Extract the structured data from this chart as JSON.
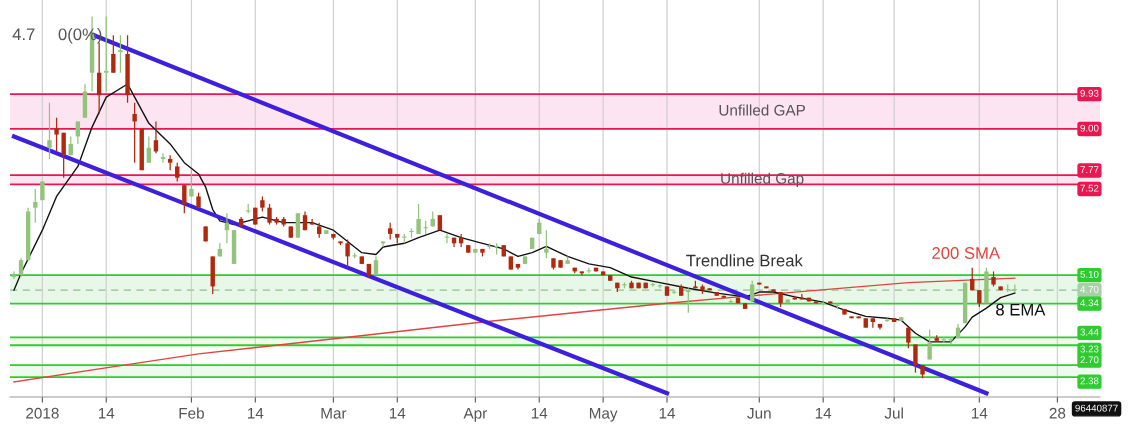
{
  "chart_data": {
    "type": "candlestick",
    "categories": [
      null,
      null,
      null,
      null,
      "2018",
      null,
      null,
      null,
      null,
      null,
      null,
      null,
      null,
      "14",
      null,
      null,
      null,
      null,
      null,
      null,
      null,
      null,
      null,
      null,
      null,
      "Feb",
      null,
      null,
      null,
      null,
      null,
      null,
      null,
      null,
      "14",
      null,
      null,
      null,
      null,
      null,
      null,
      null,
      null,
      null,
      null,
      "Mar",
      null,
      null,
      null,
      null,
      null,
      null,
      null,
      null,
      "14",
      null,
      null,
      null,
      null,
      null,
      null,
      null,
      null,
      null,
      null,
      "Apr",
      null,
      null,
      null,
      null,
      null,
      null,
      null,
      null,
      "14",
      null,
      null,
      null,
      null,
      null,
      null,
      null,
      null,
      "May",
      null,
      null,
      null,
      null,
      null,
      null,
      null,
      null,
      "14",
      null,
      null,
      null,
      null,
      null,
      null,
      null,
      null,
      null,
      null,
      null,
      null,
      "Jun",
      null,
      null,
      null,
      null,
      null,
      null,
      null,
      null,
      "14",
      null,
      null,
      null,
      null,
      null,
      null,
      null,
      null,
      null,
      "Jul",
      null,
      null,
      null,
      null,
      null,
      null,
      null,
      null,
      null,
      null,
      null,
      "14",
      null,
      null,
      null,
      null,
      null,
      null,
      null,
      null,
      null,
      null,
      "28"
    ],
    "ohlc": [
      [
        5.05,
        5.2,
        5.0,
        5.1
      ],
      [
        5.1,
        5.55,
        5.05,
        5.5
      ],
      [
        5.5,
        6.9,
        5.5,
        6.8
      ],
      [
        6.9,
        7.4,
        6.5,
        7.05
      ],
      [
        7.1,
        7.6,
        7.1,
        7.6
      ],
      [
        8.5,
        9.7,
        8.2,
        8.7
      ],
      [
        9.0,
        9.3,
        8.4,
        8.85
      ],
      [
        8.9,
        8.9,
        7.7,
        8.3
      ],
      [
        8.3,
        8.8,
        8.3,
        8.6
      ],
      [
        8.8,
        9.2,
        8.6,
        9.2
      ],
      [
        9.3,
        10.2,
        9.3,
        10.0
      ],
      [
        10.5,
        12.0,
        10.0,
        11.55
      ],
      [
        10.5,
        11.3,
        9.4,
        9.9
      ],
      [
        10.5,
        12.0,
        10.0,
        10.55
      ],
      [
        11.0,
        11.5,
        10.5,
        10.5
      ],
      [
        11.05,
        11.5,
        10.5,
        11.1
      ],
      [
        11.0,
        11.5,
        9.7,
        9.9
      ],
      [
        9.4,
        9.7,
        8.1,
        9.2
      ],
      [
        9.0,
        9.0,
        7.9,
        7.9
      ],
      [
        8.1,
        8.8,
        8.1,
        8.5
      ],
      [
        8.7,
        9.2,
        8.35,
        8.4
      ],
      [
        8.2,
        8.35,
        8.1,
        8.25
      ],
      [
        8.2,
        8.3,
        7.9,
        8.1
      ],
      [
        8.0,
        8.1,
        7.6,
        7.7
      ],
      [
        7.5,
        7.5,
        6.75,
        7.0
      ],
      [
        7.2,
        7.9,
        7.2,
        7.4
      ],
      [
        7.2,
        7.3,
        6.9,
        6.9
      ],
      [
        6.4,
        6.4,
        6.0,
        6.0
      ],
      [
        5.6,
        5.6,
        4.6,
        4.8
      ],
      [
        5.6,
        5.95,
        5.6,
        5.8
      ],
      [
        6.3,
        6.75,
        5.95,
        6.5
      ],
      [
        5.4,
        6.3,
        5.4,
        6.3
      ],
      [
        6.6,
        6.65,
        6.4,
        6.4
      ],
      [
        6.8,
        7.0,
        6.75,
        6.82
      ],
      [
        6.9,
        6.9,
        6.45,
        6.45
      ],
      [
        7.1,
        7.2,
        6.8,
        6.9
      ],
      [
        6.9,
        7.0,
        6.45,
        6.5
      ],
      [
        6.6,
        6.65,
        6.45,
        6.5
      ],
      [
        6.6,
        6.65,
        6.4,
        6.45
      ],
      [
        6.4,
        6.4,
        6.1,
        6.1
      ],
      [
        6.1,
        6.75,
        6.1,
        6.75
      ],
      [
        6.7,
        6.8,
        6.3,
        6.3
      ],
      [
        6.5,
        6.6,
        6.45,
        6.45
      ],
      [
        6.4,
        6.5,
        6.1,
        6.2
      ],
      [
        6.2,
        6.3,
        6.2,
        6.3
      ],
      [
        6.2,
        6.2,
        6.05,
        6.1
      ],
      [
        6.0,
        6.0,
        5.9,
        5.95
      ],
      [
        5.95,
        6.05,
        5.3,
        5.6
      ],
      [
        5.6,
        5.7,
        5.55,
        5.62
      ],
      [
        5.6,
        5.6,
        5.4,
        5.4
      ],
      [
        5.4,
        5.4,
        5.05,
        5.1
      ],
      [
        5.1,
        5.6,
        5.1,
        5.5
      ],
      [
        5.95,
        6.0,
        5.85,
        6.0
      ],
      [
        6.35,
        6.5,
        6.05,
        6.2
      ],
      [
        6.2,
        6.2,
        5.95,
        6.1
      ],
      [
        6.1,
        6.2,
        5.95,
        6.12
      ],
      [
        6.25,
        6.35,
        6.1,
        6.27
      ],
      [
        6.2,
        7.0,
        6.2,
        6.6
      ],
      [
        6.35,
        6.55,
        6.2,
        6.37
      ],
      [
        6.4,
        6.8,
        6.4,
        6.6
      ],
      [
        6.7,
        6.7,
        6.3,
        6.3
      ],
      [
        6.1,
        6.2,
        5.95,
        6.12
      ],
      [
        6.1,
        6.1,
        5.85,
        5.95
      ],
      [
        6.1,
        6.2,
        5.85,
        5.95
      ],
      [
        5.9,
        5.9,
        5.7,
        5.7
      ],
      [
        5.7,
        5.8,
        5.7,
        5.8
      ],
      [
        5.8,
        5.8,
        5.6,
        5.7
      ],
      [
        5.85,
        5.95,
        5.8,
        5.87
      ],
      [
        5.85,
        5.95,
        5.65,
        5.87
      ],
      [
        5.9,
        5.9,
        5.6,
        5.6
      ],
      [
        5.6,
        5.6,
        5.25,
        5.25
      ],
      [
        5.4,
        5.4,
        5.25,
        5.3
      ],
      [
        5.4,
        5.6,
        5.4,
        5.6
      ],
      [
        5.8,
        6.1,
        5.8,
        6.1
      ],
      [
        6.2,
        6.6,
        6.2,
        6.5
      ],
      [
        5.7,
        6.3,
        5.55,
        5.8
      ],
      [
        5.55,
        5.55,
        5.25,
        5.3
      ],
      [
        5.5,
        5.5,
        5.3,
        5.3
      ],
      [
        5.4,
        5.6,
        5.4,
        5.5
      ],
      [
        5.3,
        5.3,
        5.15,
        5.2
      ],
      [
        5.2,
        5.2,
        5.1,
        5.15
      ],
      [
        5.2,
        5.3,
        5.15,
        5.22
      ],
      [
        5.3,
        5.3,
        5.2,
        5.2
      ],
      [
        5.2,
        5.2,
        5.1,
        5.1
      ],
      [
        5.1,
        5.1,
        4.95,
        4.95
      ],
      [
        4.9,
        4.9,
        4.65,
        4.75
      ],
      [
        4.83,
        4.9,
        4.75,
        4.85
      ],
      [
        4.9,
        4.95,
        4.75,
        4.75
      ],
      [
        4.9,
        4.9,
        4.75,
        4.75
      ],
      [
        4.9,
        4.9,
        4.75,
        4.75
      ],
      [
        4.83,
        4.9,
        4.8,
        4.85
      ],
      [
        4.8,
        4.85,
        4.75,
        4.82
      ],
      [
        4.8,
        4.8,
        4.55,
        4.55
      ],
      [
        4.63,
        4.7,
        4.6,
        4.65
      ],
      [
        4.8,
        4.85,
        4.55,
        4.55
      ],
      [
        4.65,
        4.75,
        4.1,
        4.7
      ],
      [
        4.8,
        4.95,
        4.75,
        4.75
      ],
      [
        4.8,
        4.85,
        4.6,
        4.7
      ],
      [
        4.75,
        4.75,
        4.7,
        4.7
      ],
      [
        4.65,
        4.65,
        4.55,
        4.55
      ],
      [
        4.55,
        4.55,
        4.5,
        4.5
      ],
      [
        4.38,
        4.45,
        4.35,
        4.4
      ],
      [
        4.5,
        4.5,
        4.35,
        4.35
      ],
      [
        4.35,
        4.35,
        4.2,
        4.2
      ],
      [
        4.4,
        4.95,
        4.4,
        4.85
      ],
      [
        4.9,
        4.9,
        4.85,
        4.85
      ],
      [
        4.8,
        4.8,
        4.75,
        4.75
      ],
      [
        4.72,
        4.72,
        4.65,
        4.65
      ],
      [
        4.65,
        4.65,
        4.25,
        4.35
      ],
      [
        4.35,
        4.45,
        4.35,
        4.45
      ],
      [
        4.5,
        4.55,
        4.45,
        4.45
      ],
      [
        4.5,
        4.6,
        4.45,
        4.45
      ],
      [
        4.5,
        4.5,
        4.4,
        4.4
      ],
      [
        4.4,
        4.4,
        4.35,
        4.35
      ],
      [
        4.33,
        4.4,
        4.3,
        4.35
      ],
      [
        4.4,
        4.4,
        4.35,
        4.35
      ],
      [
        4.28,
        4.35,
        4.2,
        4.3
      ],
      [
        4.2,
        4.2,
        4.05,
        4.05
      ],
      [
        4.0,
        4.0,
        3.95,
        3.95
      ],
      [
        4.0,
        4.0,
        3.95,
        3.95
      ],
      [
        3.95,
        3.95,
        3.7,
        3.7
      ],
      [
        3.95,
        3.95,
        3.7,
        3.85
      ],
      [
        3.8,
        3.8,
        3.65,
        3.7
      ],
      [
        3.88,
        3.95,
        3.85,
        3.9
      ],
      [
        3.95,
        3.95,
        3.85,
        3.85
      ],
      [
        3.88,
        3.98,
        3.88,
        3.98
      ],
      [
        3.7,
        3.7,
        3.15,
        3.3
      ],
      [
        3.25,
        3.25,
        2.5,
        2.7
      ],
      [
        2.7,
        2.7,
        2.35,
        2.45
      ],
      [
        2.85,
        3.65,
        2.85,
        3.3
      ],
      [
        3.42,
        3.5,
        3.35,
        3.35
      ],
      [
        3.36,
        3.45,
        3.3,
        3.38
      ],
      [
        3.36,
        3.45,
        3.25,
        3.38
      ],
      [
        3.42,
        3.8,
        3.42,
        3.7
      ],
      [
        3.82,
        4.9,
        3.82,
        4.9
      ],
      [
        5.0,
        5.3,
        4.7,
        4.7
      ],
      [
        4.7,
        4.7,
        4.25,
        4.35
      ],
      [
        4.35,
        5.3,
        4.35,
        5.2
      ],
      [
        5.05,
        5.2,
        4.8,
        4.85
      ],
      [
        4.8,
        4.8,
        4.7,
        4.7
      ],
      [
        4.7,
        4.85,
        4.65,
        4.72
      ],
      [
        4.7,
        4.85,
        4.65,
        4.72
      ],
      null,
      null,
      null,
      null,
      null,
      null
    ],
    "colors": [
      "#93c47d",
      "#93c47d",
      "#93c47d",
      "#93c47d",
      "#93c47d",
      "#93c47d",
      "#b0290f",
      "#b0290f",
      "#93c47d",
      "#93c47d",
      "#93c47d",
      "#93c47d",
      "#b0290f",
      "#93c47d",
      "#b0290f",
      "#93c47d",
      "#b0290f",
      "#b0290f",
      "#b0290f",
      "#93c47d",
      "#b0290f",
      "#93c47d",
      "#b0290f",
      "#b0290f",
      "#b0290f",
      "#93c47d",
      "#b0290f",
      "#b0290f",
      "#b0290f",
      "#93c47d",
      "#93c47d",
      "#93c47d",
      "#b0290f",
      "#93c47d",
      "#b0290f",
      "#b0290f",
      "#b0290f",
      "#b0290f",
      "#b0290f",
      "#b0290f",
      "#93c47d",
      "#b0290f",
      "#b0290f",
      "#b0290f",
      "#93c47d",
      "#b0290f",
      "#b0290f",
      "#b0290f",
      "#93c47d",
      "#b0290f",
      "#b0290f",
      "#93c47d",
      "#93c47d",
      "#b0290f",
      "#b0290f",
      "#93c47d",
      "#93c47d",
      "#93c47d",
      "#93c47d",
      "#93c47d",
      "#b0290f",
      "#93c47d",
      "#b0290f",
      "#b0290f",
      "#b0290f",
      "#93c47d",
      "#b0290f",
      "#93c47d",
      "#93c47d",
      "#b0290f",
      "#b0290f",
      "#b0290f",
      "#93c47d",
      "#93c47d",
      "#93c47d",
      "#93c47d",
      "#b0290f",
      "#b0290f",
      "#93c47d",
      "#b0290f",
      "#b0290f",
      "#93c47d",
      "#b0290f",
      "#b0290f",
      "#b0290f",
      "#b0290f",
      "#93c47d",
      "#b0290f",
      "#b0290f",
      "#b0290f",
      "#93c47d",
      "#93c47d",
      "#b0290f",
      "#93c47d",
      "#b0290f",
      "#93c47d",
      "#b0290f",
      "#b0290f",
      "#b0290f",
      "#b0290f",
      "#b0290f",
      "#93c47d",
      "#b0290f",
      "#b0290f",
      "#93c47d",
      "#b0290f",
      "#b0290f",
      "#b0290f",
      "#b0290f",
      "#93c47d",
      "#b0290f",
      "#b0290f",
      "#b0290f",
      "#b0290f",
      "#93c47d",
      "#b0290f",
      "#93c47d",
      "#b0290f",
      "#b0290f",
      "#b0290f",
      "#b0290f",
      "#b0290f",
      "#b0290f",
      "#93c47d",
      "#b0290f",
      "#93c47d",
      "#b0290f",
      "#b0290f",
      "#b0290f",
      "#93c47d",
      "#b0290f",
      "#93c47d",
      "#93c47d",
      "#93c47d",
      "#93c47d",
      "#b0290f",
      "#b0290f",
      "#93c47d",
      "#b0290f",
      "#b0290f",
      "#93c47d",
      "#93c47d",
      null,
      null,
      null,
      null,
      null,
      null
    ],
    "series": [
      {
        "name": "200 SMA",
        "type": "line",
        "color": "#e0443a",
        "values": [
          2.25,
          null,
          null,
          null,
          null,
          null,
          null,
          null,
          null,
          null,
          null,
          null,
          2.6,
          null,
          null,
          null,
          null,
          null,
          null,
          null,
          null,
          null,
          null,
          null,
          null,
          null,
          3.0,
          null,
          null,
          null,
          null,
          null,
          null,
          null,
          null,
          null,
          null,
          null,
          null,
          null,
          null,
          null,
          null,
          null,
          null,
          null,
          null,
          null,
          null,
          null,
          null,
          null,
          3.55,
          null,
          null,
          null,
          null,
          null,
          null,
          null,
          null,
          null,
          null,
          null,
          null,
          null,
          3.85,
          null,
          null,
          null,
          null,
          null,
          null,
          null,
          null,
          null,
          null,
          null,
          null,
          null,
          null,
          null,
          null,
          null,
          null,
          null,
          null,
          null,
          null,
          null,
          null,
          null,
          4.35,
          null,
          null,
          null,
          null,
          null,
          null,
          null,
          null,
          null,
          4.52,
          null,
          null,
          null,
          null,
          null,
          null,
          null,
          null,
          null,
          null,
          null,
          null,
          null,
          null,
          null,
          null,
          null,
          null,
          null,
          null,
          null,
          null,
          null,
          4.9,
          null,
          null,
          null,
          null,
          null,
          null,
          null,
          null,
          null,
          null,
          null,
          null,
          null,
          null,
          5.02,
          null,
          null,
          null,
          null,
          null,
          null
        ]
      },
      {
        "name": "8 EMA",
        "type": "line",
        "color": "#111111",
        "values": [
          4.7,
          5.15,
          null,
          null,
          6.3,
          null,
          7.2,
          null,
          null,
          8.0,
          null,
          9.05,
          null,
          9.85,
          null,
          null,
          10.2,
          9.85,
          null,
          9.15,
          null,
          null,
          8.6,
          null,
          8.1,
          null,
          7.8,
          7.45,
          6.85,
          6.55,
          null,
          6.45,
          null,
          6.55,
          null,
          6.65,
          null,
          null,
          6.5,
          null,
          null,
          null,
          6.5,
          null,
          null,
          6.3,
          null,
          6.0,
          null,
          5.7,
          null,
          5.65,
          5.85,
          null,
          null,
          5.95,
          null,
          6.1,
          null,
          null,
          6.3,
          null,
          null,
          6.1,
          null,
          null,
          5.95,
          null,
          null,
          5.8,
          null,
          5.6,
          null,
          5.7,
          null,
          5.87,
          null,
          null,
          5.6,
          null,
          null,
          5.4,
          null,
          null,
          5.3,
          null,
          null,
          5.05,
          null,
          null,
          null,
          4.9,
          null,
          null,
          null,
          4.75,
          null,
          null,
          null,
          4.62,
          null,
          null,
          null,
          4.52,
          null,
          4.65,
          null,
          4.65,
          null,
          null,
          4.52,
          null,
          null,
          null,
          4.38,
          null,
          null,
          4.17,
          null,
          null,
          4.0,
          null,
          null,
          3.95,
          null,
          3.9,
          null,
          3.55,
          null,
          3.32,
          null,
          null,
          3.32,
          null,
          3.72,
          3.98,
          null,
          4.22,
          null,
          4.5,
          null,
          4.62,
          null,
          null,
          null,
          null,
          null,
          null
        ]
      },
      {
        "type": "line",
        "color": "#3d1fdc",
        "values": [
          null,
          null,
          null,
          null,
          null,
          null,
          null,
          null,
          null,
          null,
          null,
          11.52,
          null,
          null,
          null,
          null,
          null,
          null,
          null,
          null,
          null,
          null,
          null,
          null,
          null,
          null,
          null,
          null,
          null,
          null,
          null,
          null,
          null,
          null,
          null,
          null,
          null,
          null,
          null,
          null,
          null,
          null,
          null,
          null,
          null,
          null,
          null,
          null,
          null,
          null,
          null,
          null,
          null,
          null,
          null,
          null,
          null,
          null,
          null,
          null,
          null,
          null,
          null,
          null,
          null,
          null,
          null,
          null,
          null,
          null,
          null,
          null,
          null,
          null,
          null,
          null,
          null,
          null,
          null,
          null,
          null,
          null,
          null,
          null,
          null,
          null,
          null,
          null,
          null,
          null,
          null,
          null,
          null,
          null,
          null,
          null,
          null,
          null,
          null,
          null,
          null,
          null,
          null,
          null,
          null,
          null,
          null,
          null,
          null,
          null,
          null,
          null,
          null,
          null,
          null,
          null,
          null,
          null,
          null,
          null,
          null,
          null,
          null,
          null,
          null,
          null,
          null,
          null,
          null,
          null,
          null,
          null,
          null,
          null,
          null,
          null,
          null,
          1.95,
          null,
          null,
          null,
          null,
          null,
          null,
          null,
          null,
          null,
          null
        ]
      },
      {
        "type": "line",
        "color": "#3d1fdc",
        "values": [
          8.8,
          null,
          null,
          null,
          null,
          null,
          null,
          null,
          null,
          null,
          null,
          null,
          null,
          null,
          null,
          null,
          null,
          null,
          null,
          null,
          null,
          null,
          null,
          null,
          null,
          null,
          null,
          null,
          null,
          null,
          null,
          null,
          null,
          null,
          null,
          null,
          null,
          null,
          null,
          null,
          null,
          null,
          null,
          null,
          null,
          null,
          null,
          null,
          null,
          null,
          null,
          null,
          null,
          null,
          null,
          null,
          null,
          null,
          null,
          null,
          null,
          null,
          null,
          null,
          null,
          null,
          null,
          null,
          null,
          null,
          null,
          null,
          null,
          null,
          null,
          null,
          null,
          null,
          null,
          null,
          null,
          null,
          null,
          null,
          null,
          null,
          null,
          null,
          null,
          null,
          null,
          null,
          1.95,
          null,
          null,
          null,
          null,
          null,
          null,
          null,
          null,
          null,
          null,
          null,
          null,
          null,
          null,
          null,
          null,
          null,
          null,
          null,
          null,
          null,
          null,
          null,
          null,
          null,
          null,
          null,
          null,
          null,
          null,
          null,
          null,
          null,
          null,
          null,
          null,
          null,
          null,
          null,
          null,
          null,
          null,
          null,
          null,
          null,
          null,
          null,
          null,
          null,
          null,
          null,
          null,
          null,
          null,
          null
        ]
      }
    ],
    "ylim": [
      1.85,
      12.44
    ],
    "tick_labels": "x",
    "grid": "x",
    "bands": [
      {
        "axis": "y",
        "from": 9.0,
        "to": 9.93,
        "label": "Unfilled GAP",
        "color": "#fde4f1"
      },
      {
        "axis": "y",
        "from": 7.52,
        "to": 7.77,
        "label": "Unfilled Gap",
        "color": "#fde4f1"
      },
      {
        "axis": "y",
        "from": 4.34,
        "to": 5.1,
        "color": "#e8f8e8"
      },
      {
        "axis": "y",
        "from": 3.23,
        "to": 3.44,
        "color": "#eefaee"
      },
      {
        "axis": "y",
        "from": 2.38,
        "to": 2.7,
        "color": "#eefaee"
      }
    ],
    "ref_lines": [
      {
        "axis": "y",
        "value": 9.93,
        "label": "9.93",
        "color": "#e8174f"
      },
      {
        "axis": "y",
        "value": 9.0,
        "label": "9.00",
        "color": "#e8174f"
      },
      {
        "axis": "y",
        "value": 7.77,
        "label": "7.77",
        "color": "#e8174f"
      },
      {
        "axis": "y",
        "value": 7.52,
        "label": "7.52",
        "color": "#e8174f"
      },
      {
        "axis": "y",
        "value": 5.1,
        "label": "5.10",
        "color": "#2ecc2e"
      },
      {
        "axis": "y",
        "value": 4.7,
        "label": "4.70",
        "color": "#a9cfa9",
        "line_style": "dashed"
      },
      {
        "axis": "y",
        "value": 4.34,
        "label": "4.34",
        "color": "#2ecc2e"
      },
      {
        "axis": "y",
        "value": 3.44,
        "label": "3.44",
        "color": "#2ecc2e"
      },
      {
        "axis": "y",
        "value": 3.23,
        "label": "3.23",
        "color": "#2ecc2e"
      },
      {
        "axis": "y",
        "value": 2.7,
        "label": "2.70",
        "color": "#2ecc2e"
      },
      {
        "axis": "y",
        "value": 2.38,
        "label": "2.38",
        "color": "#2ecc2e"
      }
    ],
    "annotations": [
      "4.7",
      "0(0%)",
      "Trendline Break",
      "96440877"
    ]
  }
}
